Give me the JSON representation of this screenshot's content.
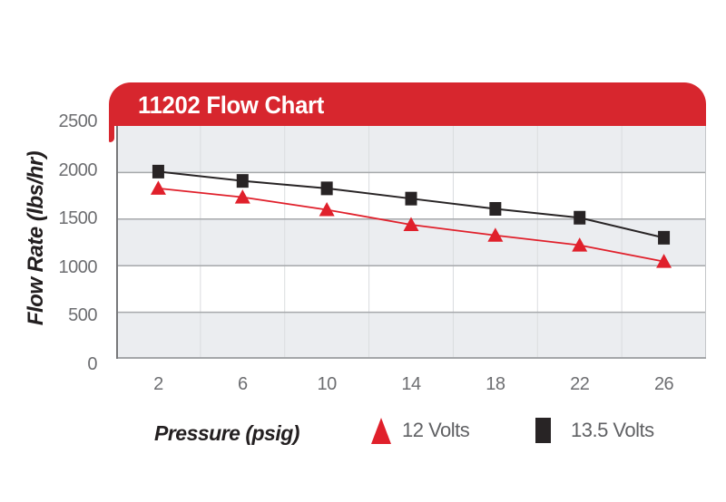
{
  "header": {
    "title": "11202 Flow Chart"
  },
  "colors": {
    "header_red": "#d7262e",
    "series_red": "#e0202b",
    "series_black": "#282425",
    "band_gray": "#ebedf0",
    "band_white": "#ffffff",
    "grid_line": "#a6a8ab",
    "vgrid_line": "#dadcdf",
    "axis_line": "#77787a",
    "bottom_line": "#a4a6a9",
    "right_border": "#c4c6c9",
    "tick_text": "#6d6e71",
    "legend_text": "#606164",
    "axis_title_text": "#231f20"
  },
  "chart_data": {
    "type": "line",
    "title": "11202 Flow Chart",
    "xlabel": "Pressure (psig)",
    "ylabel": "Flow Rate (lbs/hr)",
    "categories": [
      2,
      6,
      10,
      14,
      18,
      22,
      26
    ],
    "y_ticks": [
      0,
      500,
      1000,
      1500,
      2000,
      2500
    ],
    "ylim": [
      0,
      2500
    ],
    "grid": "horizontal lines every 500 units; alternating gray/white 500-unit bands; faint vertical lines at category boundaries",
    "legend_position": "bottom",
    "series": [
      {
        "name": "12 Volts",
        "marker": "triangle",
        "color": "#e0202b",
        "values": [
          1830,
          1735,
          1600,
          1440,
          1325,
          1220,
          1045
        ]
      },
      {
        "name": "13.5 Volts",
        "marker": "square",
        "color": "#282425",
        "values": [
          2010,
          1910,
          1830,
          1720,
          1610,
          1515,
          1300
        ]
      }
    ]
  }
}
